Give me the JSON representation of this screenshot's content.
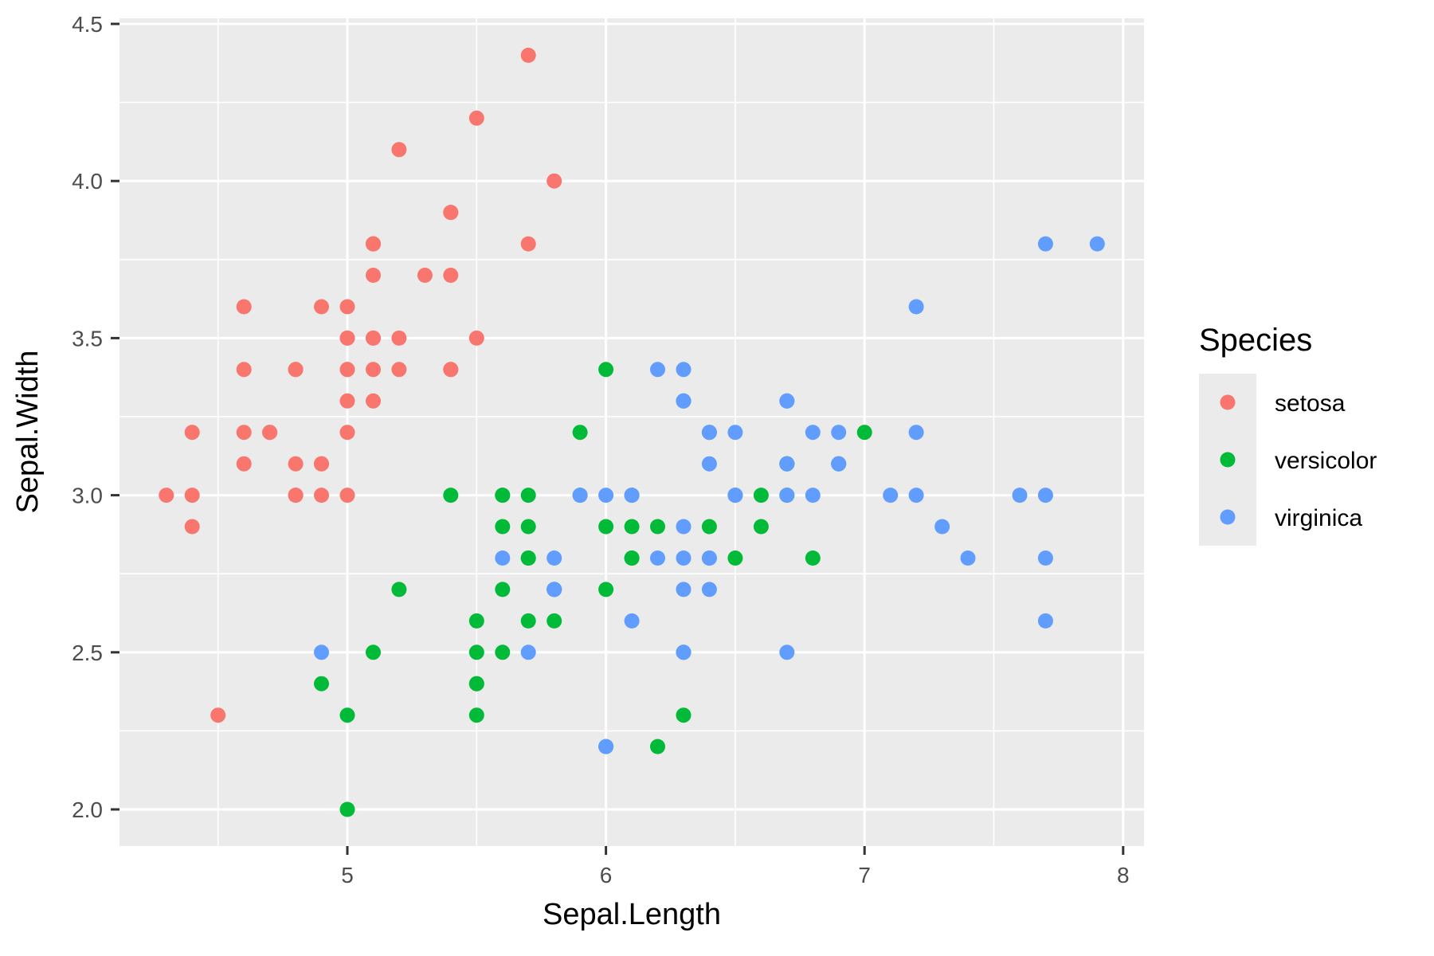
{
  "chart_data": {
    "type": "scatter",
    "title": "",
    "xlabel": "Sepal.Length",
    "ylabel": "Sepal.Width",
    "xlim": [
      4.18,
      8.02
    ],
    "ylim": [
      1.88,
      4.52
    ],
    "x_ticks": [
      5,
      6,
      7,
      8
    ],
    "x_tick_labels": [
      "5",
      "6",
      "7",
      "8"
    ],
    "y_ticks": [
      2.0,
      2.5,
      3.0,
      3.5,
      4.0,
      4.5
    ],
    "y_tick_labels": [
      "2.0",
      "2.5",
      "3.0",
      "3.5",
      "4.0",
      "4.5"
    ],
    "grid": true,
    "panel_background": "#ebebeb",
    "legend": {
      "title": "Species",
      "position": "right",
      "entries": [
        "setosa",
        "versicolor",
        "virginica"
      ]
    },
    "series": [
      {
        "name": "setosa",
        "color": "#F8766D",
        "x": [
          5.1,
          4.9,
          4.7,
          4.6,
          5.0,
          5.4,
          4.6,
          5.0,
          4.4,
          4.9,
          5.4,
          4.8,
          4.8,
          4.3,
          5.8,
          5.7,
          5.4,
          5.1,
          5.7,
          5.1,
          5.4,
          5.1,
          4.6,
          5.1,
          4.8,
          5.0,
          5.0,
          5.2,
          5.2,
          4.7,
          4.8,
          5.4,
          5.2,
          5.5,
          4.9,
          5.0,
          5.5,
          4.9,
          4.4,
          5.1,
          5.0,
          4.5,
          4.4,
          5.0,
          5.1,
          4.8,
          5.1,
          4.6,
          5.3,
          5.0
        ],
        "y": [
          3.5,
          3.0,
          3.2,
          3.1,
          3.6,
          3.9,
          3.4,
          3.4,
          2.9,
          3.1,
          3.7,
          3.4,
          3.0,
          3.0,
          4.0,
          4.4,
          3.9,
          3.5,
          3.8,
          3.8,
          3.4,
          3.7,
          3.6,
          3.3,
          3.4,
          3.0,
          3.4,
          3.5,
          3.4,
          3.2,
          3.1,
          3.4,
          4.1,
          4.2,
          3.1,
          3.2,
          3.5,
          3.6,
          3.0,
          3.4,
          3.5,
          2.3,
          3.2,
          3.5,
          3.8,
          3.0,
          3.8,
          3.2,
          3.7,
          3.3
        ]
      },
      {
        "name": "versicolor",
        "color": "#00BA38",
        "x": [
          7.0,
          6.4,
          6.9,
          5.5,
          6.5,
          5.7,
          6.3,
          4.9,
          6.6,
          5.2,
          5.0,
          5.9,
          6.0,
          6.1,
          5.6,
          6.7,
          5.6,
          5.8,
          6.2,
          5.6,
          5.9,
          6.1,
          6.3,
          6.1,
          6.4,
          6.6,
          6.8,
          6.7,
          6.0,
          5.7,
          5.5,
          5.5,
          5.8,
          6.0,
          5.4,
          6.0,
          6.7,
          6.3,
          5.6,
          5.5,
          5.5,
          6.1,
          5.8,
          5.0,
          5.6,
          5.7,
          5.7,
          6.2,
          5.1,
          5.7
        ],
        "y": [
          3.2,
          3.2,
          3.1,
          2.3,
          2.8,
          2.8,
          3.3,
          2.4,
          2.9,
          2.7,
          2.0,
          3.0,
          2.2,
          2.9,
          2.9,
          3.1,
          3.0,
          2.7,
          2.2,
          2.5,
          3.2,
          2.8,
          2.5,
          2.8,
          2.9,
          3.0,
          2.8,
          3.0,
          2.9,
          2.6,
          2.4,
          2.4,
          2.7,
          2.7,
          3.0,
          3.4,
          3.1,
          2.3,
          3.0,
          2.5,
          2.6,
          3.0,
          2.6,
          2.3,
          2.7,
          3.0,
          2.9,
          2.9,
          2.5,
          2.8
        ]
      },
      {
        "name": "virginica",
        "color": "#619CFF",
        "x": [
          6.3,
          5.8,
          7.1,
          6.3,
          6.5,
          7.6,
          4.9,
          7.3,
          6.7,
          7.2,
          6.5,
          6.4,
          6.8,
          5.7,
          5.8,
          6.4,
          6.5,
          7.7,
          7.7,
          6.0,
          6.9,
          5.6,
          7.7,
          6.3,
          6.7,
          7.2,
          6.2,
          6.1,
          6.4,
          7.2,
          7.4,
          7.9,
          6.4,
          6.3,
          6.1,
          7.7,
          6.3,
          6.4,
          6.0,
          6.9,
          6.7,
          6.9,
          5.8,
          6.8,
          6.7,
          6.7,
          6.3,
          6.5,
          6.2,
          5.9
        ],
        "y": [
          3.3,
          2.7,
          3.0,
          2.9,
          3.0,
          3.0,
          2.5,
          2.9,
          2.5,
          3.6,
          3.2,
          2.7,
          3.0,
          2.5,
          2.8,
          3.2,
          3.0,
          3.8,
          2.6,
          2.2,
          3.2,
          2.8,
          2.8,
          2.7,
          3.3,
          3.2,
          2.8,
          3.0,
          2.8,
          3.0,
          2.8,
          3.8,
          2.8,
          2.8,
          2.6,
          3.0,
          3.4,
          3.1,
          3.0,
          3.1,
          3.1,
          3.1,
          2.7,
          3.2,
          3.3,
          3.0,
          2.5,
          3.0,
          3.4,
          3.0
        ]
      }
    ]
  },
  "axes": {
    "x_title": "Sepal.Length",
    "y_title": "Sepal.Width"
  },
  "legend": {
    "title": "Species",
    "items": [
      {
        "label": "setosa",
        "color": "#F8766D"
      },
      {
        "label": "versicolor",
        "color": "#00BA38"
      },
      {
        "label": "virginica",
        "color": "#619CFF"
      }
    ]
  }
}
